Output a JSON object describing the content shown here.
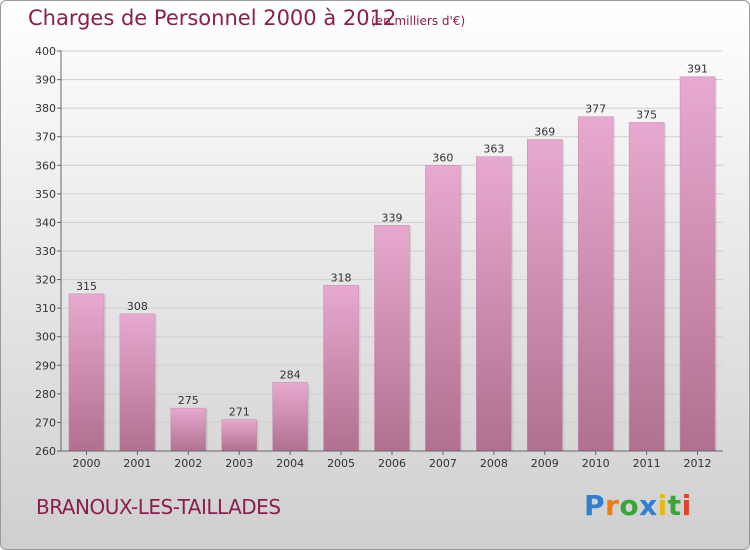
{
  "header": {
    "title": "Charges de Personnel 2000 à 2012",
    "subtitle": "(en milliers d'€)"
  },
  "footer": {
    "commune": "BRANOUX-LES-TAILLADES",
    "logo": {
      "text": "Proxiti",
      "letters": [
        {
          "char": "P",
          "color": "#2e7fd1"
        },
        {
          "char": "r",
          "color": "#ef7c0d"
        },
        {
          "char": "o",
          "color": "#3aa63a"
        },
        {
          "char": "x",
          "color": "#2e7fd1"
        },
        {
          "char": "i",
          "color": "#e5b914"
        },
        {
          "char": "t",
          "color": "#3aa63a"
        },
        {
          "char": "i",
          "color": "#e0442b"
        }
      ]
    }
  },
  "chart_data": {
    "type": "bar",
    "categories": [
      "2000",
      "2001",
      "2002",
      "2003",
      "2004",
      "2005",
      "2006",
      "2007",
      "2008",
      "2009",
      "2010",
      "2011",
      "2012"
    ],
    "values": [
      315,
      308,
      275,
      271,
      284,
      318,
      339,
      360,
      363,
      369,
      377,
      375,
      391
    ],
    "ylim": [
      260,
      400
    ],
    "yticks": [
      260,
      270,
      280,
      290,
      300,
      310,
      320,
      330,
      340,
      350,
      360,
      370,
      380,
      390,
      400
    ],
    "grid": true,
    "colors": {
      "bar_top": "#e8a9d0",
      "bar_bottom": "#b0708f",
      "text": "#333333",
      "axis": "#666666",
      "grid": "#d0d0d0"
    }
  }
}
